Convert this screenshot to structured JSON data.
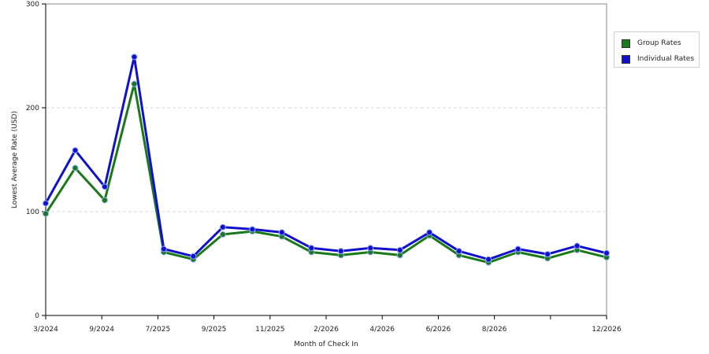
{
  "chart_data": {
    "type": "line",
    "xlabel": "Month of Check In",
    "ylabel": "Lowest Average Rate (USD)",
    "ylim": [
      0,
      300
    ],
    "yticks": [
      0,
      100,
      200,
      300
    ],
    "grid": "horizontal dashed",
    "legend_position": "right",
    "x_tick_labels": [
      "3/2024",
      "9/2024",
      "7/2025",
      "9/2025",
      "11/2025",
      "2/2026",
      "4/2026",
      "6/2026",
      "8/2026",
      "",
      "12/2026"
    ],
    "series": [
      {
        "name": "Group Rates",
        "color": "#1a7a1a",
        "values": [
          98,
          142,
          111,
          223,
          61,
          54,
          78,
          81,
          76,
          61,
          58,
          61,
          58,
          77,
          58,
          51,
          61,
          55,
          63,
          56
        ]
      },
      {
        "name": "Individual Rates",
        "color": "#1111cc",
        "values": [
          108,
          159,
          124,
          249,
          64,
          57,
          85,
          83,
          80,
          65,
          62,
          65,
          63,
          80,
          62,
          54,
          64,
          59,
          67,
          60
        ]
      }
    ]
  }
}
